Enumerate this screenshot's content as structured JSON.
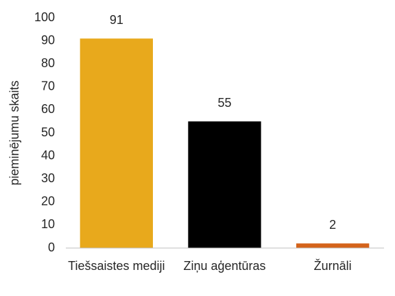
{
  "chart_data": {
    "type": "bar",
    "y_label": "pieminējumu skaits",
    "categories": [
      "Tiešsaistes mediji",
      "Ziņu aģentūras",
      "Žurnāli"
    ],
    "values": [
      91,
      55,
      2
    ],
    "colors": [
      "#e8a91c",
      "#000000",
      "#d4631a"
    ],
    "ylim": [
      0,
      100
    ],
    "yticks": [
      0,
      10,
      20,
      30,
      40,
      50,
      60,
      70,
      80,
      90,
      100
    ],
    "grid": false
  }
}
